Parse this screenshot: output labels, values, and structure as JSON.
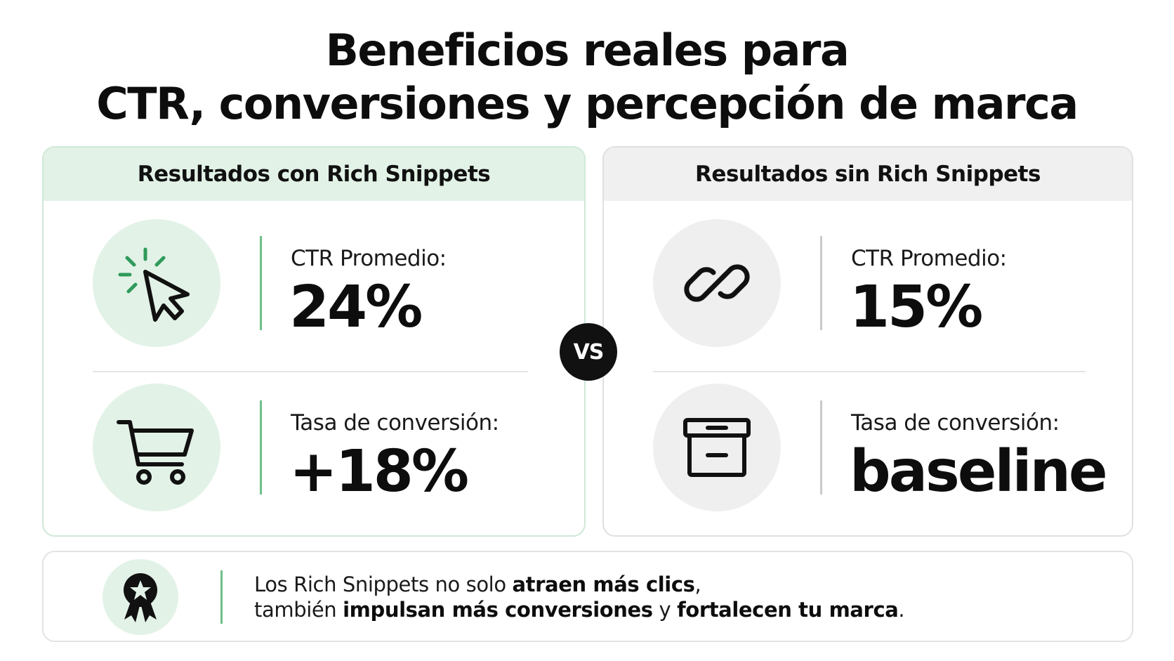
{
  "title": {
    "line1": "Beneficios reales para",
    "line2": "CTR, conversiones y percepción de marca"
  },
  "panels": {
    "with": {
      "header": "Resultados con Rich Snippets",
      "ctr_label": "CTR Promedio:",
      "ctr_value": "24%",
      "conv_label": "Tasa de conversión:",
      "conv_value": "+18%"
    },
    "without": {
      "header": "Resultados sin Rich Snippets",
      "ctr_label": "CTR Promedio:",
      "ctr_value": "15%",
      "conv_label": "Tasa de conversión:",
      "conv_value": "baseline"
    }
  },
  "vs_label": "VS",
  "footer": {
    "line1_a": "Los Rich Snippets no solo ",
    "line1_b": "atraen más clics",
    "line1_c": ",",
    "line2_a": "también ",
    "line2_b": "impulsan más conversiones",
    "line2_c": " y ",
    "line2_d": "fortalecen tu marca",
    "line2_e": "."
  },
  "icons": {
    "ctr_with": "cursor-click-icon",
    "conv_with": "shopping-cart-icon",
    "ctr_without": "link-icon",
    "conv_without": "archive-box-icon",
    "footer": "award-ribbon-icon"
  },
  "colors": {
    "accent_green": "#6fbf8a",
    "green_tint": "#e2f2e7",
    "gray_tint": "#efefef",
    "icon_green": "#2f9a5a"
  }
}
